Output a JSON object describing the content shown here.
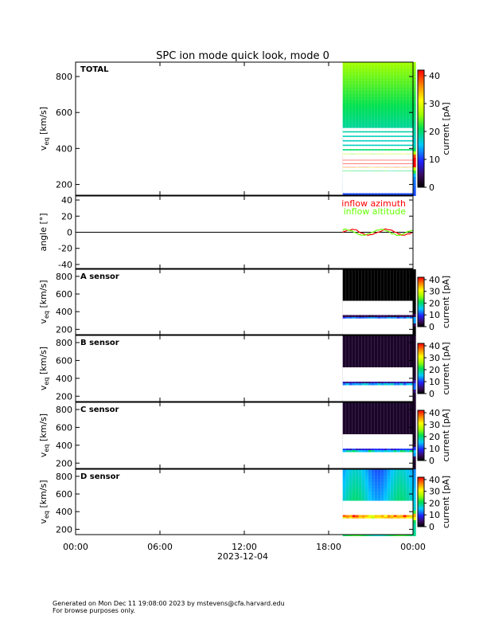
{
  "chart_data": {
    "title": "SPC ion mode quick look, mode 0",
    "xlabel": "2023-12-04",
    "x_tick_labels": [
      "00:00",
      "06:00",
      "12:00",
      "18:00",
      "00:00"
    ],
    "x_ticks_hours": [
      0,
      6,
      12,
      18,
      24
    ],
    "data_start_hour": 19.0,
    "panels": [
      {
        "type": "heatmap",
        "label": "TOTAL",
        "ylabel_main": "v",
        "ylabel_sub": "eq",
        "ylabel_unit": "[km/s]",
        "ylim": [
          140,
          880
        ],
        "y_ticks": [
          200,
          400,
          600,
          800
        ],
        "colorbar": {
          "label": "current [pA]",
          "ticks": [
            0,
            10,
            20,
            30,
            40
          ],
          "range": [
            0,
            42
          ]
        },
        "background_level": 18,
        "core_center_kms": 335,
        "core_peak_pA": 38,
        "gap_bins_kms": [
          505,
          480,
          455,
          430,
          405,
          380,
          360,
          345,
          325,
          305,
          285,
          265,
          250,
          235,
          220,
          205,
          190,
          175,
          160
        ]
      },
      {
        "type": "line",
        "ylabel": "angle [°]",
        "ylim": [
          -45,
          45
        ],
        "y_ticks": [
          -40,
          -20,
          0,
          20,
          40
        ],
        "series": [
          {
            "name": "inflow azimuth",
            "color": "#ff0000"
          },
          {
            "name": "inflow altitude",
            "color": "#66ff00"
          }
        ],
        "series_range_deg": [
          -5,
          5
        ]
      },
      {
        "type": "heatmap",
        "label": "A sensor",
        "ylabel_main": "v",
        "ylabel_sub": "eq",
        "ylabel_unit": "[km/s]",
        "ylim": [
          140,
          880
        ],
        "y_ticks": [
          200,
          400,
          600,
          800
        ],
        "colorbar": {
          "label": "current [pA]",
          "ticks": [
            0,
            10,
            20,
            30,
            40
          ],
          "range": [
            0,
            42
          ]
        },
        "background_level": 0,
        "core_center_kms": 320,
        "core_peak_pA": 14,
        "gap_bins_kms": [
          505,
          480,
          455,
          430,
          405,
          380,
          305,
          285,
          265,
          250,
          235,
          220,
          205,
          190,
          175,
          160
        ]
      },
      {
        "type": "heatmap",
        "label": "B sensor",
        "ylabel_main": "v",
        "ylabel_sub": "eq",
        "ylabel_unit": "[km/s]",
        "ylim": [
          140,
          880
        ],
        "y_ticks": [
          200,
          400,
          600,
          800
        ],
        "colorbar": {
          "label": "current [pA]",
          "ticks": [
            0,
            10,
            20,
            30,
            40
          ],
          "range": [
            0,
            42
          ]
        },
        "background_level": 2,
        "core_center_kms": 330,
        "core_peak_pA": 14,
        "gap_bins_kms": [
          505,
          480,
          455,
          430,
          405,
          380,
          305,
          285,
          265,
          250,
          235,
          220,
          205,
          190,
          175,
          160
        ]
      },
      {
        "type": "heatmap",
        "label": "C sensor",
        "ylabel_main": "v",
        "ylabel_sub": "eq",
        "ylabel_unit": "[km/s]",
        "ylim": [
          140,
          880
        ],
        "y_ticks": [
          200,
          400,
          600,
          800
        ],
        "colorbar": {
          "label": "current [pA]",
          "ticks": [
            0,
            10,
            20,
            30,
            40
          ],
          "range": [
            0,
            42
          ]
        },
        "background_level": 2,
        "core_center_kms": 340,
        "core_peak_pA": 16,
        "gap_bins_kms": [
          505,
          480,
          455,
          430,
          405,
          380,
          305,
          285,
          265,
          250,
          235,
          220,
          205,
          190,
          175,
          160
        ]
      },
      {
        "type": "heatmap",
        "label": "D sensor",
        "ylabel_main": "v",
        "ylabel_sub": "eq",
        "ylabel_unit": "[km/s]",
        "ylim": [
          140,
          880
        ],
        "y_ticks": [
          200,
          400,
          600,
          800
        ],
        "colorbar": {
          "label": "current [pA]",
          "ticks": [
            0,
            10,
            20,
            30,
            40
          ],
          "range": [
            0,
            42
          ]
        },
        "background_level": 15,
        "core_center_kms": 360,
        "core_peak_pA": 18,
        "gap_bins_kms": [
          505,
          480,
          455,
          430,
          405,
          380,
          305,
          285,
          265,
          250,
          235,
          220,
          205,
          190,
          175,
          160
        ]
      }
    ]
  },
  "footer": {
    "line1": "Generated on Mon Dec 11 19:08:00 2023 by mstevens@cfa.harvard.edu",
    "line2": "For browse purposes only."
  }
}
